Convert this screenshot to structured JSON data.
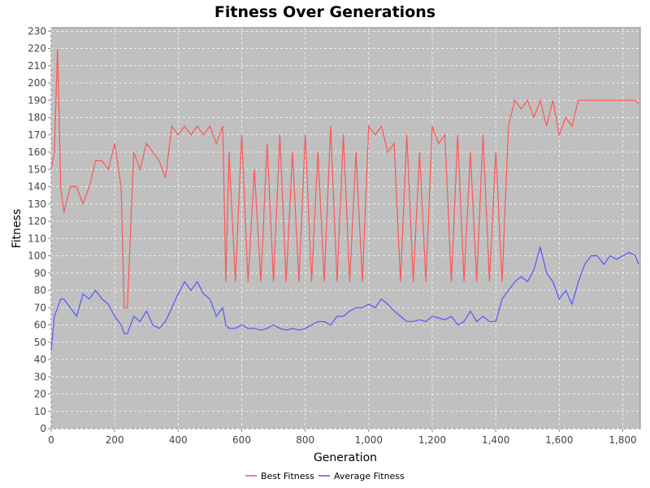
{
  "chart_data": {
    "type": "line",
    "title": "Fitness Over Generations",
    "xlabel": "Generation",
    "ylabel": "Fitness",
    "xlim": [
      0,
      1855
    ],
    "ylim": [
      0,
      232
    ],
    "x_ticks": [
      0,
      200,
      400,
      600,
      800,
      1000,
      1200,
      1400,
      1600,
      1800
    ],
    "x_tick_labels": [
      "0",
      "200",
      "400",
      "600",
      "800",
      "1,000",
      "1,200",
      "1,400",
      "1,600",
      "1,800"
    ],
    "y_ticks": [
      0,
      10,
      20,
      30,
      40,
      50,
      60,
      70,
      80,
      90,
      100,
      110,
      120,
      130,
      140,
      150,
      160,
      170,
      180,
      190,
      200,
      210,
      220,
      230
    ],
    "grid": true,
    "legend_position": "bottom-center",
    "colors": {
      "plot_background": "#c0c0c0",
      "best": "#ff5555",
      "average": "#5555ff",
      "grid": "#ffffff"
    },
    "series": [
      {
        "name": "Best Fitness",
        "x": [
          0,
          10,
          20,
          30,
          40,
          60,
          80,
          100,
          120,
          140,
          160,
          180,
          200,
          220,
          230,
          240,
          260,
          280,
          300,
          320,
          340,
          360,
          380,
          400,
          420,
          440,
          460,
          480,
          500,
          520,
          540,
          550,
          560,
          580,
          600,
          620,
          640,
          660,
          680,
          700,
          720,
          740,
          760,
          780,
          800,
          820,
          840,
          860,
          880,
          900,
          920,
          940,
          960,
          980,
          1000,
          1020,
          1040,
          1060,
          1080,
          1100,
          1120,
          1140,
          1160,
          1180,
          1200,
          1220,
          1240,
          1260,
          1280,
          1300,
          1320,
          1340,
          1360,
          1380,
          1400,
          1420,
          1440,
          1460,
          1480,
          1500,
          1520,
          1540,
          1560,
          1580,
          1600,
          1620,
          1640,
          1660,
          1680,
          1700,
          1720,
          1740,
          1760,
          1780,
          1800,
          1820,
          1840,
          1850
        ],
        "values": [
          150,
          160,
          220,
          140,
          125,
          140,
          140,
          130,
          140,
          155,
          155,
          150,
          165,
          140,
          70,
          70,
          160,
          150,
          165,
          160,
          155,
          145,
          175,
          170,
          175,
          170,
          175,
          170,
          175,
          165,
          175,
          85,
          160,
          85,
          170,
          85,
          150,
          85,
          165,
          85,
          170,
          85,
          160,
          85,
          170,
          85,
          160,
          85,
          175,
          85,
          170,
          85,
          160,
          85,
          175,
          170,
          175,
          160,
          165,
          85,
          170,
          85,
          160,
          85,
          175,
          165,
          170,
          85,
          170,
          85,
          160,
          85,
          170,
          85,
          160,
          85,
          175,
          190,
          185,
          190,
          180,
          190,
          175,
          190,
          170,
          180,
          175,
          190,
          190,
          190,
          190,
          190,
          190,
          190,
          190,
          190,
          190,
          188
        ]
      },
      {
        "name": "Average Fitness",
        "x": [
          0,
          10,
          20,
          30,
          40,
          60,
          80,
          100,
          120,
          140,
          160,
          180,
          200,
          220,
          230,
          240,
          260,
          280,
          300,
          320,
          340,
          360,
          380,
          400,
          420,
          440,
          460,
          480,
          500,
          520,
          540,
          550,
          560,
          580,
          600,
          620,
          640,
          660,
          680,
          700,
          720,
          740,
          760,
          780,
          800,
          820,
          840,
          860,
          880,
          900,
          920,
          940,
          960,
          980,
          1000,
          1020,
          1040,
          1060,
          1080,
          1100,
          1120,
          1140,
          1160,
          1180,
          1200,
          1220,
          1240,
          1260,
          1280,
          1300,
          1320,
          1340,
          1360,
          1380,
          1400,
          1420,
          1440,
          1460,
          1480,
          1500,
          1520,
          1540,
          1560,
          1580,
          1600,
          1620,
          1640,
          1660,
          1680,
          1700,
          1720,
          1740,
          1760,
          1780,
          1800,
          1820,
          1840,
          1850
        ],
        "values": [
          45,
          65,
          70,
          75,
          75,
          70,
          65,
          78,
          75,
          80,
          75,
          72,
          65,
          60,
          55,
          55,
          65,
          62,
          68,
          60,
          58,
          62,
          70,
          78,
          85,
          80,
          85,
          78,
          75,
          65,
          70,
          60,
          58,
          58,
          60,
          58,
          58,
          57,
          58,
          60,
          58,
          57,
          58,
          57,
          58,
          60,
          62,
          62,
          60,
          65,
          65,
          68,
          70,
          70,
          72,
          70,
          75,
          72,
          68,
          65,
          62,
          62,
          63,
          62,
          65,
          64,
          63,
          65,
          60,
          62,
          68,
          62,
          65,
          62,
          62,
          75,
          80,
          85,
          88,
          85,
          92,
          105,
          90,
          85,
          75,
          80,
          72,
          85,
          95,
          100,
          100,
          95,
          100,
          98,
          100,
          102,
          100,
          95
        ]
      }
    ]
  }
}
